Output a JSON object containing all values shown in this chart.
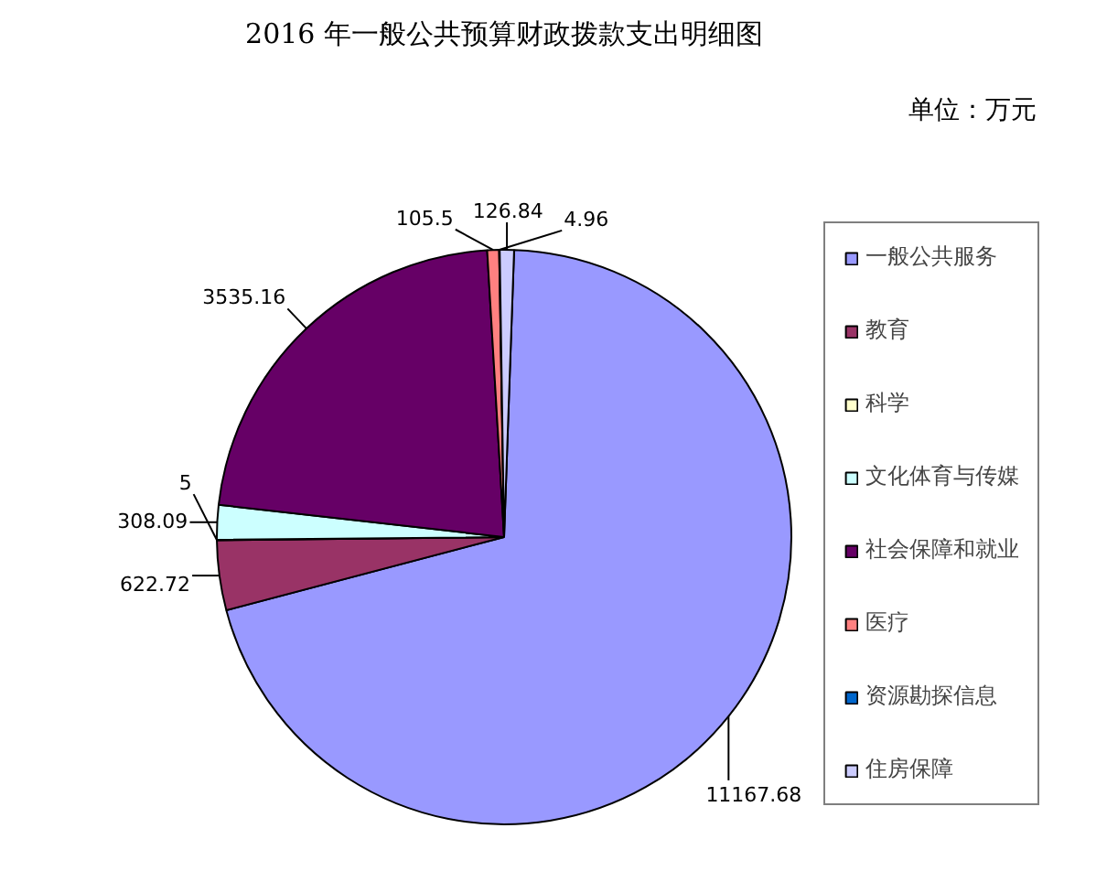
{
  "chart_data": {
    "type": "pie",
    "title": "2016 年一般公共预算财政拨款支出明细图",
    "subtitle": "单位：万元",
    "categories": [
      "一般公共服务",
      "教育",
      "科学",
      "文化体育与传媒",
      "社会保障和就业",
      "医疗",
      "资源勘探信息",
      "住房保障"
    ],
    "values": [
      11167.68,
      622.72,
      5,
      308.09,
      3535.16,
      105.5,
      4.96,
      126.84
    ],
    "colors": [
      "#9999ff",
      "#993366",
      "#ffffcc",
      "#ccffff",
      "#660066",
      "#ff8080",
      "#0066cc",
      "#ccccff"
    ],
    "data_labels": true,
    "legend": "right"
  }
}
